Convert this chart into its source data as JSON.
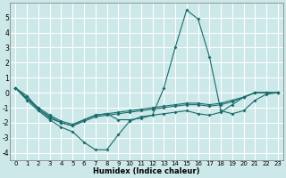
{
  "xlabel": "Humidex (Indice chaleur)",
  "ylabel": "",
  "bg_color": "#cce8e8",
  "grid_color": "#ffffff",
  "line_color": "#1a6b6b",
  "xlim": [
    -0.5,
    23.5
  ],
  "ylim": [
    -4.5,
    6.0
  ],
  "xticks": [
    0,
    1,
    2,
    3,
    4,
    5,
    6,
    7,
    8,
    9,
    10,
    11,
    12,
    13,
    14,
    15,
    16,
    17,
    18,
    19,
    20,
    21,
    22,
    23
  ],
  "yticks": [
    -4,
    -3,
    -2,
    -1,
    0,
    1,
    2,
    3,
    4,
    5
  ],
  "lines": [
    {
      "x": [
        0,
        1,
        2,
        3,
        4,
        5,
        6,
        7,
        8,
        9,
        10,
        11,
        12,
        13,
        14,
        15,
        16,
        17,
        18,
        19,
        20,
        21,
        22,
        23
      ],
      "y": [
        0.3,
        -0.2,
        -1.1,
        -1.7,
        -2.0,
        -2.2,
        -1.8,
        -1.5,
        -1.4,
        -1.8,
        -1.8,
        -1.7,
        -1.5,
        0.3,
        3.0,
        5.5,
        4.9,
        2.4,
        -1.2,
        -1.4,
        -1.2,
        -0.5,
        -0.1,
        0.0
      ]
    },
    {
      "x": [
        0,
        1,
        2,
        3,
        4,
        5,
        6,
        7,
        8,
        9,
        10,
        11,
        12,
        13,
        14,
        15,
        16,
        17,
        18,
        19,
        20,
        21,
        22,
        23
      ],
      "y": [
        0.3,
        -0.5,
        -1.2,
        -1.8,
        -2.3,
        -2.6,
        -3.3,
        -3.8,
        -3.8,
        -2.8,
        -1.9,
        -1.6,
        -1.5,
        -1.4,
        -1.3,
        -1.2,
        -1.4,
        -1.5,
        -1.3,
        -0.8,
        -0.3,
        0.0,
        0.0,
        0.0
      ]
    },
    {
      "x": [
        0,
        2,
        3,
        4,
        5,
        6,
        7,
        8,
        9,
        10,
        11,
        12,
        13,
        14,
        15,
        16,
        17,
        18,
        19,
        20,
        21,
        22,
        23
      ],
      "y": [
        0.3,
        -1.1,
        -1.6,
        -2.0,
        -2.2,
        -1.9,
        -1.6,
        -1.5,
        -1.4,
        -1.3,
        -1.2,
        -1.1,
        -1.0,
        -0.9,
        -0.8,
        -0.8,
        -0.9,
        -0.8,
        -0.6,
        -0.3,
        0.0,
        0.0,
        0.0
      ]
    },
    {
      "x": [
        0,
        2,
        3,
        4,
        5,
        6,
        7,
        8,
        9,
        10,
        11,
        12,
        13,
        14,
        15,
        16,
        17,
        18,
        19,
        20,
        21,
        22,
        23
      ],
      "y": [
        0.3,
        -1.0,
        -1.5,
        -1.9,
        -2.1,
        -1.8,
        -1.5,
        -1.4,
        -1.3,
        -1.2,
        -1.1,
        -1.0,
        -0.9,
        -0.8,
        -0.7,
        -0.7,
        -0.8,
        -0.7,
        -0.5,
        -0.3,
        0.0,
        0.0,
        0.0
      ]
    }
  ]
}
